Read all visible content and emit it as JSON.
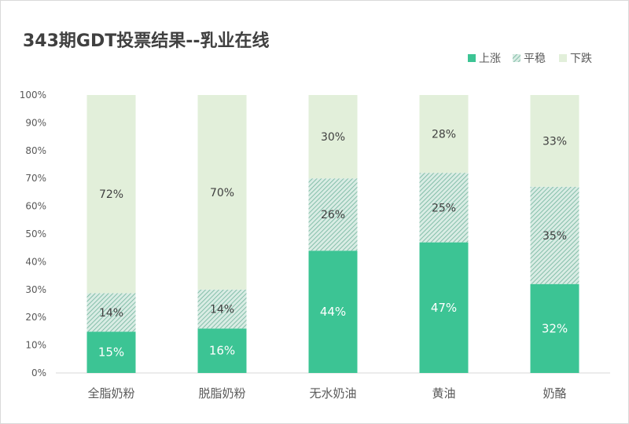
{
  "chart_data": {
    "type": "bar",
    "stacked": "percent",
    "title": "343期GDT投票结果--乳业在线",
    "categories": [
      "全脂奶粉",
      "脱脂奶粉",
      "无水奶油",
      "黄油",
      "奶酪"
    ],
    "series": [
      {
        "name": "上涨",
        "values": [
          15,
          16,
          44,
          47,
          32
        ],
        "color": "#3cc494",
        "pattern": "solid"
      },
      {
        "name": "平稳",
        "values": [
          14,
          14,
          26,
          25,
          35
        ],
        "color": "#8fc7b4",
        "pattern": "hatch"
      },
      {
        "name": "下跌",
        "values": [
          72,
          70,
          30,
          28,
          33
        ],
        "color": "#e2efda",
        "pattern": "solid"
      }
    ],
    "ylim": [
      0,
      100
    ],
    "yticks": [
      "0%",
      "10%",
      "20%",
      "30%",
      "40%",
      "50%",
      "60%",
      "70%",
      "80%",
      "90%",
      "100%"
    ],
    "value_suffix": "%",
    "legend_position": "top-right",
    "grid": false
  }
}
